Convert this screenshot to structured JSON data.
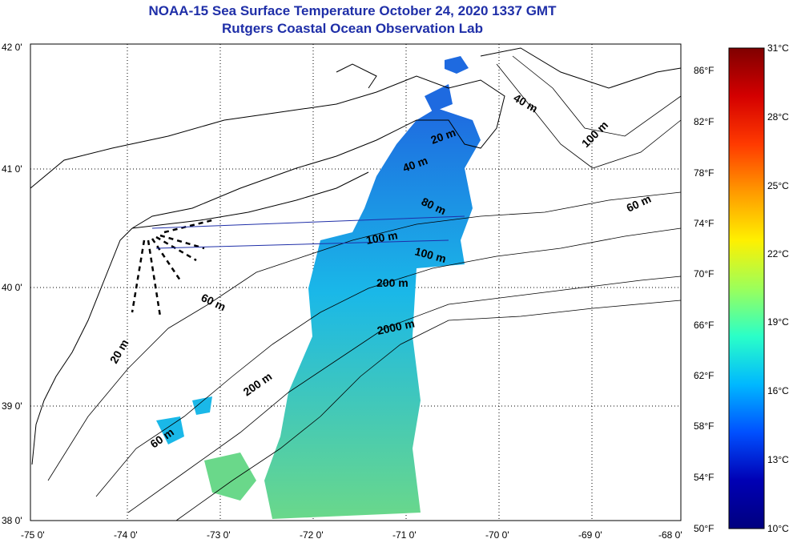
{
  "title": {
    "line1": "NOAA-15 Sea Surface Temperature October 24, 2020 1337 GMT",
    "line2": "Rutgers Coastal Ocean Observation Lab"
  },
  "map": {
    "lat_labels": [
      "42 0'",
      "41 0'",
      "40 0'",
      "39 0'",
      "38 0'"
    ],
    "lon_labels": [
      "-75 0'",
      "-74 0'",
      "-73 0'",
      "-72 0'",
      "-71 0'",
      "-70 0'",
      "-69 0'",
      "-68 0'"
    ],
    "lat_range": [
      38,
      42
    ],
    "lon_range": [
      -75,
      -68
    ],
    "depth_labels": [
      "20 m",
      "40 m",
      "60 m",
      "80 m",
      "100 m",
      "200 m",
      "2000 m",
      "60 m",
      "20 m",
      "40 m",
      "100 m",
      "60 m",
      "200 m",
      "60 m"
    ],
    "grid": "dotted"
  },
  "colorbar": {
    "fahrenheit": [
      "86°F",
      "82°F",
      "78°F",
      "74°F",
      "70°F",
      "66°F",
      "62°F",
      "58°F",
      "54°F",
      "50°F"
    ],
    "celsius": [
      "31°C",
      "28°C",
      "25°C",
      "22°C",
      "19°C",
      "16°C",
      "13°C",
      "10°C"
    ],
    "colors": [
      "#7f0000",
      "#d40000",
      "#ff3a00",
      "#ff9a00",
      "#fff000",
      "#9cff5a",
      "#2affc8",
      "#00b8ff",
      "#0050ff",
      "#0000b4",
      "#00007f"
    ]
  },
  "colors": {
    "title": "#1f2fa8",
    "sst_cold": "#1e6ae0",
    "sst_mid": "#1ab8e8",
    "sst_warm": "#6ad88a"
  }
}
